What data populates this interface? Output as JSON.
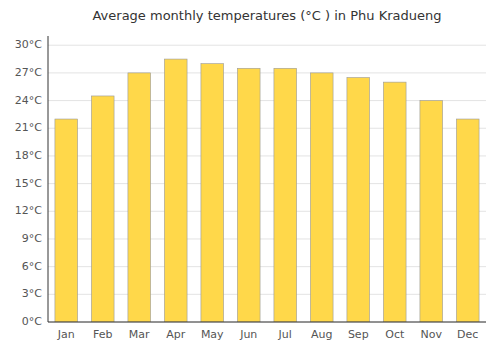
{
  "chart_data": {
    "type": "bar",
    "title": "Average monthly temperatures (°C ) in Phu Kradueng",
    "categories": [
      "Jan",
      "Feb",
      "Mar",
      "Apr",
      "May",
      "Jun",
      "Jul",
      "Aug",
      "Sep",
      "Oct",
      "Nov",
      "Dec"
    ],
    "values": [
      22,
      24.5,
      27,
      28.5,
      28,
      27.5,
      27.5,
      27,
      26.5,
      26,
      24,
      22
    ],
    "color": "#FFD84A",
    "ylim": [
      0,
      31
    ],
    "yticks": [
      {
        "value": 0,
        "label": "0°C"
      },
      {
        "value": 3,
        "label": "3°C"
      },
      {
        "value": 6,
        "label": "6°C"
      },
      {
        "value": 9,
        "label": "9°C"
      },
      {
        "value": 12,
        "label": "12°C"
      },
      {
        "value": 15,
        "label": "15°C"
      },
      {
        "value": 18,
        "label": "18°C"
      },
      {
        "value": 21,
        "label": "21°C"
      },
      {
        "value": 24,
        "label": "24°C"
      },
      {
        "value": 27,
        "label": "27°C"
      },
      {
        "value": 30,
        "label": "30°C"
      }
    ],
    "grid": true
  }
}
